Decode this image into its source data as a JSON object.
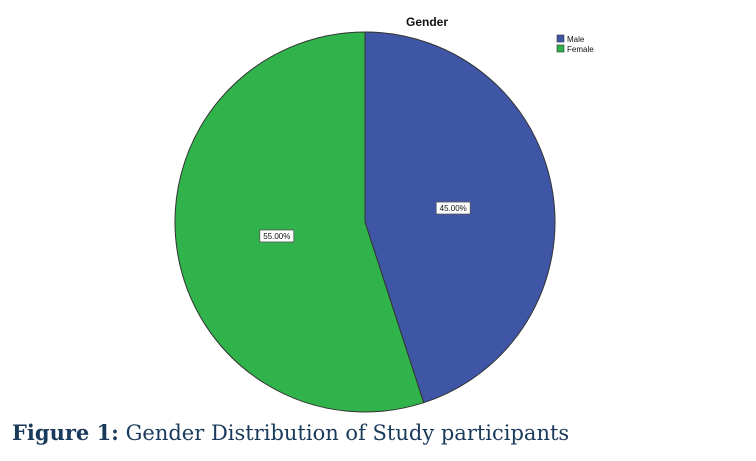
{
  "caption": {
    "label": "Figure 1:",
    "text": " Gender Distribution of Study participants"
  },
  "chart_data": {
    "type": "pie",
    "title": "Gender",
    "slices": [
      {
        "label": "Male",
        "value": 45.0,
        "display": "45.00%",
        "color": "#3f56a7"
      },
      {
        "label": "Female",
        "value": 55.0,
        "display": "55.00%",
        "color": "#2fb34a"
      }
    ],
    "start_angle": "12 o'clock",
    "direction": "clockwise",
    "legend_position": "top-right"
  }
}
